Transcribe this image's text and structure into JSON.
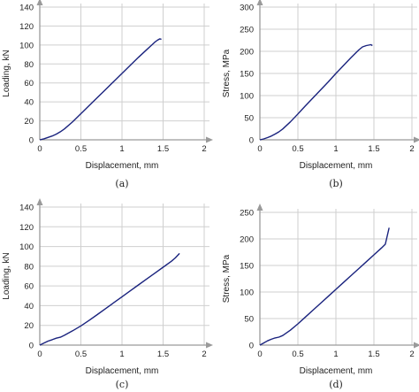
{
  "chart_data": [
    {
      "panel": "(a)",
      "type": "line",
      "xlabel": "Displacement, mm",
      "ylabel": "Loading, kN",
      "xlim": [
        0,
        2
      ],
      "ylim": [
        0,
        140
      ],
      "xticks": [
        "0",
        "0.5",
        "1",
        "1.5",
        "2"
      ],
      "yticks": [
        "0",
        "20",
        "40",
        "60",
        "80",
        "100",
        "120",
        "140"
      ],
      "grid": true,
      "series": [
        {
          "color": "#1a237e",
          "x": [
            0,
            0.05,
            0.1,
            0.15,
            0.2,
            0.25,
            0.3,
            0.4,
            0.5,
            0.6,
            0.7,
            0.8,
            0.9,
            1.0,
            1.1,
            1.2,
            1.3,
            1.35,
            1.4,
            1.43,
            1.46,
            1.48
          ],
          "y": [
            0,
            1,
            2.5,
            4,
            6,
            8.5,
            11.5,
            19,
            27.5,
            36,
            44.5,
            53,
            61.5,
            70,
            78.5,
            87,
            95,
            99,
            103,
            105,
            106.5,
            106
          ]
        }
      ]
    },
    {
      "panel": "(b)",
      "type": "line",
      "xlabel": "Displacement, mm",
      "ylabel": "Stress, MPa",
      "xlim": [
        0,
        2
      ],
      "ylim": [
        0,
        300
      ],
      "xticks": [
        "0",
        "0.5",
        "1",
        "1.5",
        "2"
      ],
      "yticks": [
        "0",
        "50",
        "100",
        "150",
        "200",
        "250",
        "300"
      ],
      "grid": true,
      "series": [
        {
          "color": "#1a237e",
          "x": [
            0,
            0.05,
            0.1,
            0.15,
            0.2,
            0.25,
            0.3,
            0.4,
            0.5,
            0.6,
            0.7,
            0.8,
            0.9,
            1.0,
            1.1,
            1.2,
            1.3,
            1.35,
            1.4,
            1.43,
            1.46,
            1.48
          ],
          "y": [
            0,
            2,
            5,
            8.5,
            13,
            18,
            24.5,
            40.5,
            58.5,
            77,
            95,
            113,
            131,
            150,
            168,
            186,
            203,
            210,
            213,
            214,
            215,
            213
          ]
        }
      ]
    },
    {
      "panel": "(c)",
      "type": "line",
      "xlabel": "Displacement, mm",
      "ylabel": "Loading, kN",
      "xlim": [
        0,
        2
      ],
      "ylim": [
        0,
        140
      ],
      "xticks": [
        "0",
        "0.5",
        "1",
        "1.5",
        "2"
      ],
      "yticks": [
        "0",
        "20",
        "40",
        "60",
        "80",
        "100",
        "120",
        "140"
      ],
      "grid": true,
      "series": [
        {
          "color": "#1a237e",
          "x": [
            0,
            0.05,
            0.1,
            0.15,
            0.2,
            0.25,
            0.3,
            0.4,
            0.5,
            0.6,
            0.7,
            0.8,
            0.9,
            1.0,
            1.1,
            1.2,
            1.3,
            1.4,
            1.5,
            1.6,
            1.65,
            1.7
          ],
          "y": [
            0,
            2,
            4,
            5.5,
            7,
            8,
            10,
            14.5,
            19.5,
            25,
            31,
            37,
            43,
            49,
            55,
            61,
            67,
            73,
            79,
            85,
            88.5,
            93
          ]
        }
      ]
    },
    {
      "panel": "(d)",
      "type": "line",
      "xlabel": "Displacement, mm",
      "ylabel": "Stress, MPa",
      "xlim": [
        0,
        2
      ],
      "ylim": [
        0,
        250
      ],
      "xticks": [
        "0",
        "0.5",
        "1",
        "1.5",
        "2"
      ],
      "yticks": [
        "0",
        "50",
        "100",
        "150",
        "200",
        "250"
      ],
      "grid": true,
      "series": [
        {
          "color": "#1a237e",
          "x": [
            0,
            0.05,
            0.1,
            0.15,
            0.2,
            0.25,
            0.3,
            0.4,
            0.5,
            0.6,
            0.7,
            0.8,
            0.9,
            1.0,
            1.1,
            1.2,
            1.3,
            1.4,
            1.5,
            1.6,
            1.65,
            1.7
          ],
          "y": [
            0,
            4,
            8,
            11,
            13.5,
            15,
            18,
            28,
            40,
            53,
            66,
            79,
            92,
            105,
            118,
            131,
            144,
            157,
            170,
            183,
            190,
            221
          ]
        }
      ]
    }
  ],
  "captions": [
    "(a)",
    "(b)",
    "(c)",
    "(d)"
  ]
}
